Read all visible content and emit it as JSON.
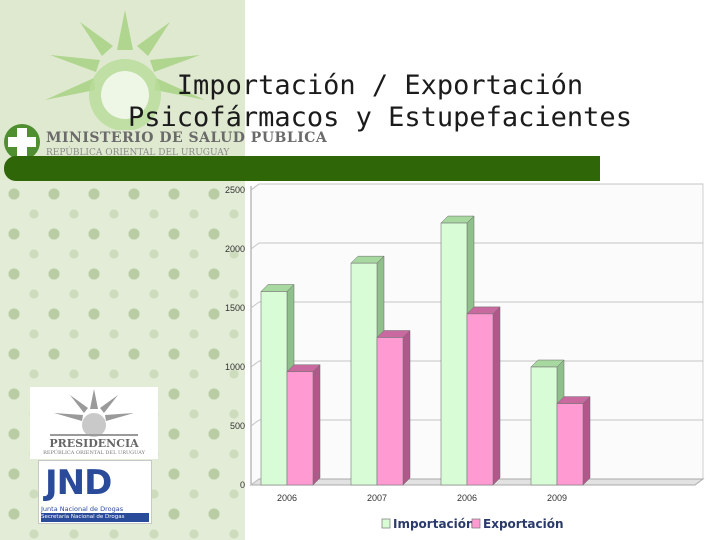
{
  "header": {
    "title_line1": "Importación / Exportación",
    "title_line2": "Psicofármacos y Estupefacientes"
  },
  "logos": {
    "ministry_name": "MINISTERIO DE SALUD PUBLICA",
    "ministry_sub": "REPÚBLICA ORIENTAL DEL URUGUAY",
    "presidencia_name": "PRESIDENCIA",
    "presidencia_sub": "REPÚBLICA ORIENTAL DEL URUGUAY",
    "jnd_letters": "JND",
    "jnd_name": "Junta Nacional de Drogas",
    "jnd_sub": "Secretaría Nacional de Drogas"
  },
  "colors": {
    "accent_bar": "#2f6607",
    "importacion": "#d8fcd6",
    "exportacion": "#ff9ad2"
  },
  "chart_data": {
    "type": "bar",
    "categories": [
      "2006",
      "2007",
      "2006",
      "2009"
    ],
    "series": [
      {
        "name": "Importación",
        "values": [
          1640,
          1880,
          2220,
          1000
        ]
      },
      {
        "name": "Exportación",
        "values": [
          960,
          1250,
          1450,
          690
        ]
      }
    ],
    "yticks": [
      "0",
      "500",
      "1000",
      "1500",
      "2000",
      "2500"
    ],
    "ylim": [
      0,
      2500
    ],
    "grid": true,
    "legend_position": "bottom",
    "title": "",
    "xlabel": "",
    "ylabel": ""
  }
}
